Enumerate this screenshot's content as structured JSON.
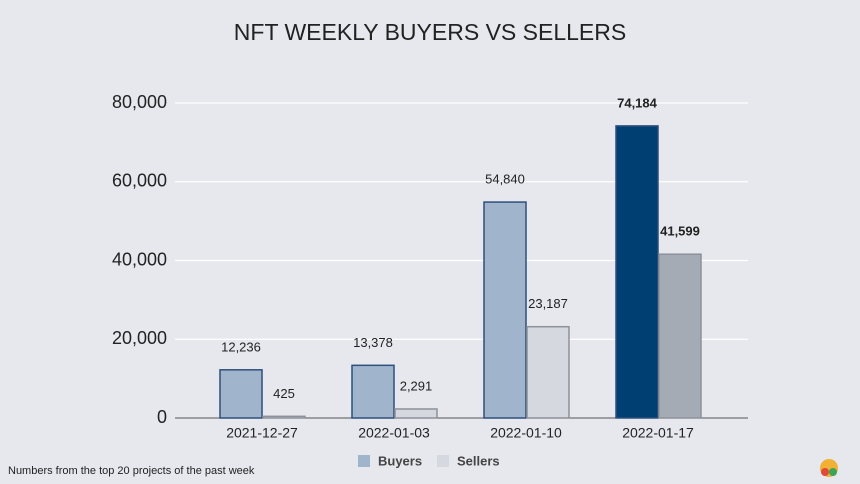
{
  "chart_data": {
    "type": "bar",
    "title": "NFT WEEKLY BUYERS VS SELLERS",
    "footnote": "Numbers from the top 20 projects of the past week",
    "categories": [
      "2021-12-27",
      "2022-01-03",
      "2022-01-10",
      "2022-01-17"
    ],
    "series": [
      {
        "name": "Buyers",
        "color": "#a0b4cc",
        "colors": [
          "#a0b4cc",
          "#a0b4cc",
          "#a0b4cc",
          "#003f72"
        ],
        "values": [
          12236,
          13378,
          54840,
          74184
        ],
        "value_labels": [
          "12,236",
          "13,378",
          "54,840",
          "74,184"
        ]
      },
      {
        "name": "Sellers",
        "color": "#d5d8de",
        "colors": [
          "#d5d8de",
          "#d5d8de",
          "#d5d8de",
          "#a5abb4"
        ],
        "values": [
          425,
          2291,
          23187,
          41599
        ],
        "value_labels": [
          "425",
          "2,291",
          "23,187",
          "41,599"
        ]
      }
    ],
    "ylim": [
      0,
      80000
    ],
    "yticks": [
      0,
      {
        "value": 20000,
        "label": "20,000"
      },
      {
        "value": 40000,
        "label": "40,000"
      },
      {
        "value": 60000,
        "label": "60,000"
      },
      {
        "value": 80000,
        "label": "80,000"
      }
    ],
    "grid": true,
    "legend": "bottom"
  }
}
